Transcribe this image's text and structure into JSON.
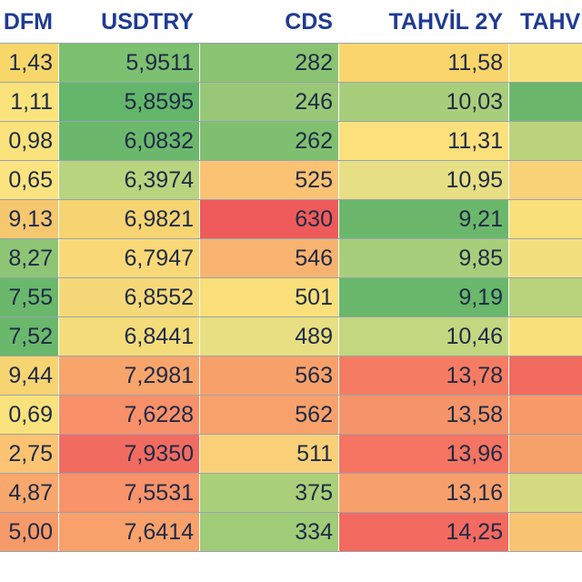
{
  "chart_data": {
    "type": "table",
    "columns": [
      "DFM",
      "USDTRY",
      "CDS",
      "TAHVİL 2Y",
      "TAHV"
    ],
    "rows": [
      {
        "DFM": "1,43",
        "USDTRY": "5,9511",
        "CDS": "282",
        "TAHVIL_2Y": "11,58"
      },
      {
        "DFM": "1,11",
        "USDTRY": "5,8595",
        "CDS": "246",
        "TAHVIL_2Y": "10,03"
      },
      {
        "DFM": "0,98",
        "USDTRY": "6,0832",
        "CDS": "262",
        "TAHVIL_2Y": "11,31"
      },
      {
        "DFM": "0,65",
        "USDTRY": "6,3974",
        "CDS": "525",
        "TAHVIL_2Y": "10,95"
      },
      {
        "DFM": "9,13",
        "USDTRY": "6,9821",
        "CDS": "630",
        "TAHVIL_2Y": "9,21"
      },
      {
        "DFM": "8,27",
        "USDTRY": "6,7947",
        "CDS": "546",
        "TAHVIL_2Y": "9,85"
      },
      {
        "DFM": "7,55",
        "USDTRY": "6,8552",
        "CDS": "501",
        "TAHVIL_2Y": "9,19"
      },
      {
        "DFM": "7,52",
        "USDTRY": "6,8441",
        "CDS": "489",
        "TAHVIL_2Y": "10,46"
      },
      {
        "DFM": "9,44",
        "USDTRY": "7,2981",
        "CDS": "563",
        "TAHVIL_2Y": "13,78"
      },
      {
        "DFM": "0,69",
        "USDTRY": "7,6228",
        "CDS": "562",
        "TAHVIL_2Y": "13,58"
      },
      {
        "DFM": "2,75",
        "USDTRY": "7,9350",
        "CDS": "511",
        "TAHVIL_2Y": "13,96"
      },
      {
        "DFM": "4,87",
        "USDTRY": "7,5531",
        "CDS": "375",
        "TAHVIL_2Y": "13,16"
      },
      {
        "DFM": "5,00",
        "USDTRY": "7,6414",
        "CDS": "334",
        "TAHVIL_2Y": "14,25"
      }
    ],
    "cell_colors": [
      [
        "#f7d66a",
        "#7cc070",
        "#8ac472",
        "#f9d56c",
        "#f9e07a"
      ],
      [
        "#fbe37c",
        "#63b56a",
        "#98c877",
        "#a9ce7b",
        "#6bb86c"
      ],
      [
        "#f9e27b",
        "#6bb86d",
        "#7fc070",
        "#fbe07c",
        "#bcd37e"
      ],
      [
        "#fbe47f",
        "#b9d47e",
        "#fbc274",
        "#e6df83",
        "#f9d278"
      ],
      [
        "#f5c76f",
        "#f6d471",
        "#ee5b5a",
        "#6bb86c",
        "#f9e07a"
      ],
      [
        "#8ec574",
        "#f9d877",
        "#f8b370",
        "#a7cf7b",
        "#f4df7e"
      ],
      [
        "#6ab86c",
        "#f5d978",
        "#fadf7a",
        "#69b86b",
        "#b8d27c"
      ],
      [
        "#6ab86c",
        "#f4dc7a",
        "#e7df82",
        "#c2d77f",
        "#f9e07a"
      ],
      [
        "#f6d472",
        "#f8a56c",
        "#f8a06a",
        "#f57c63",
        "#f36a5f"
      ],
      [
        "#f9e27b",
        "#f8906a",
        "#f8a16b",
        "#f59468",
        "#f79a68"
      ],
      [
        "#fbc372",
        "#f26b61",
        "#f9d077",
        "#f57462",
        "#f6a16a"
      ],
      [
        "#f8a76d",
        "#f8936a",
        "#aacf7a",
        "#f8a06b",
        "#d4da80"
      ],
      [
        "#f79a69",
        "#f8a16b",
        "#a0cc78",
        "#f26a60",
        "#f9c472"
      ]
    ]
  }
}
